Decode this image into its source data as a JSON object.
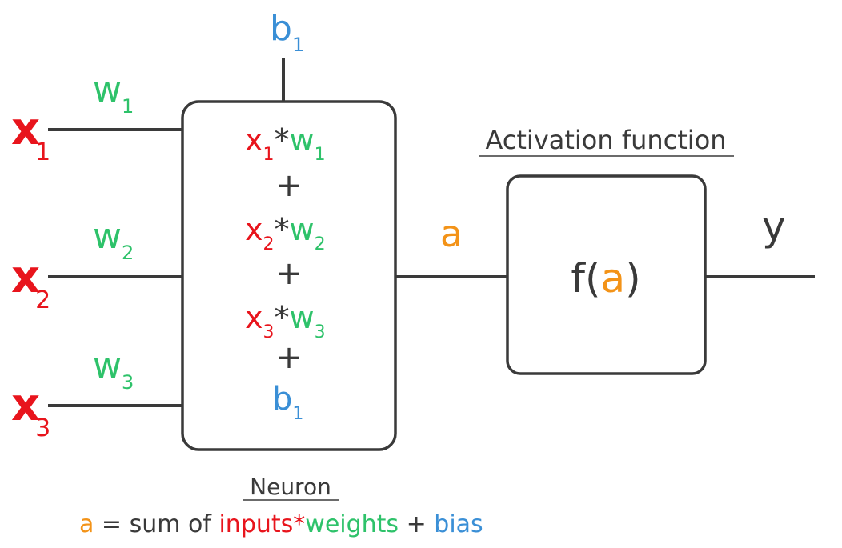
{
  "colors": {
    "input": "#e8141c",
    "weight": "#2ec26a",
    "bias": "#3a8fd6",
    "activation": "#f39318",
    "stroke": "#3a3a3a",
    "text": "#3a3a3a"
  },
  "inputs": [
    {
      "symbol": "x",
      "index": "1",
      "weight_symbol": "w",
      "weight_index": "1"
    },
    {
      "symbol": "x",
      "index": "2",
      "weight_symbol": "w",
      "weight_index": "2"
    },
    {
      "symbol": "x",
      "index": "3",
      "weight_symbol": "w",
      "weight_index": "3"
    }
  ],
  "bias": {
    "symbol": "b",
    "index": "1"
  },
  "neuron": {
    "terms": [
      {
        "x": "x",
        "xi": "1",
        "op": "*",
        "w": "w",
        "wi": "1"
      },
      {
        "x": "x",
        "xi": "2",
        "op": "*",
        "w": "w",
        "wi": "2"
      },
      {
        "x": "x",
        "xi": "3",
        "op": "*",
        "w": "w",
        "wi": "3"
      }
    ],
    "plus": "+",
    "bias_symbol": "b",
    "bias_index": "1",
    "label": "Neuron"
  },
  "activation": {
    "label": "Activation function",
    "func": "f(",
    "arg": "a",
    "close": ")",
    "input_label": "a",
    "output_label": "y"
  },
  "caption": {
    "a": "a",
    "eq": " = sum of ",
    "inputs": "inputs",
    "star": "*",
    "weights": "weights",
    "plus": " + ",
    "bias": "bias"
  }
}
